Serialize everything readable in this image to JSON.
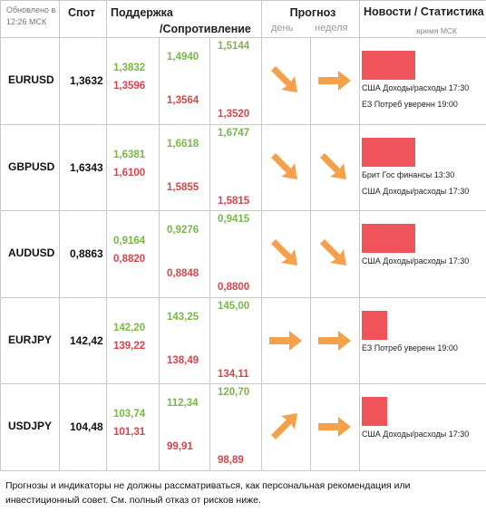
{
  "header": {
    "updated": "Обновлено в 12:26 МСК",
    "spot": "Спот",
    "support": "Поддержка",
    "resistance": "/Сопротивление",
    "forecast": "Прогноз",
    "day": "день",
    "week": "неделя",
    "news": "Новости / Статистика",
    "news_time": "время МСК"
  },
  "rows": [
    {
      "pair": "EURUSD",
      "spot": "1,3632",
      "levels": {
        "g1": "1,3832",
        "r1": "1,3596",
        "g2": "1,4940",
        "r2": "1,3564",
        "g3": "1,5144",
        "r3": "1,3520"
      },
      "forecast_day": "down-right-arrow",
      "forecast_week": "right-arrow",
      "news_bar_pct": 95,
      "news": [
        "США Доходы/расходы 17:30",
        "ЕЗ Потреб уверенн 19:00"
      ]
    },
    {
      "pair": "GBPUSD",
      "spot": "1,6343",
      "levels": {
        "g1": "1,6381",
        "r1": "1,6100",
        "g2": "1,6618",
        "r2": "1,5855",
        "g3": "1,6747",
        "r3": "1,5815"
      },
      "forecast_day": "down-right-arrow",
      "forecast_week": "down-right-arrow",
      "news_bar_pct": 95,
      "news": [
        "Брит Гос финансы 13:30",
        "США Доходы/расходы 17:30"
      ]
    },
    {
      "pair": "AUDUSD",
      "spot": "0,8863",
      "levels": {
        "g1": "0,9164",
        "r1": "0,8820",
        "g2": "0,9276",
        "r2": "0,8848",
        "g3": "0,9415",
        "r3": "0,8800"
      },
      "forecast_day": "down-right-arrow",
      "forecast_week": "down-right-arrow",
      "news_bar_pct": 95,
      "news": [
        "США Доходы/расходы 17:30"
      ]
    },
    {
      "pair": "EURJPY",
      "spot": "142,42",
      "levels": {
        "g1": "142,20",
        "r1": "139,22",
        "g2": "143,25",
        "r2": "138,49",
        "g3": "145,00",
        "r3": "134,11"
      },
      "forecast_day": "right-arrow",
      "forecast_week": "right-arrow",
      "news_bar_pct": 45,
      "news": [
        "ЕЗ Потреб уверенн 19:00"
      ]
    },
    {
      "pair": "USDJPY",
      "spot": "104,48",
      "levels": {
        "g1": "103,74",
        "r1": "101,31",
        "g2": "112,34",
        "r2": "99,91",
        "g3": "120,70",
        "r3": "98,89"
      },
      "forecast_day": "up-right-arrow",
      "forecast_week": "right-arrow",
      "news_bar_pct": 45,
      "news": [
        "США Доходы/расходы 17:30"
      ]
    }
  ],
  "disclaimer": "Прогнозы и индикаторы не должны рассматриваться, как персональная рекомендация или инвестиционный совет. См. полный отказ от рисков ниже.",
  "colors": {
    "support": "#7ab648",
    "resistance": "#d9444a",
    "arrow": "#f5a04a",
    "news_bar": "#f0545b"
  }
}
